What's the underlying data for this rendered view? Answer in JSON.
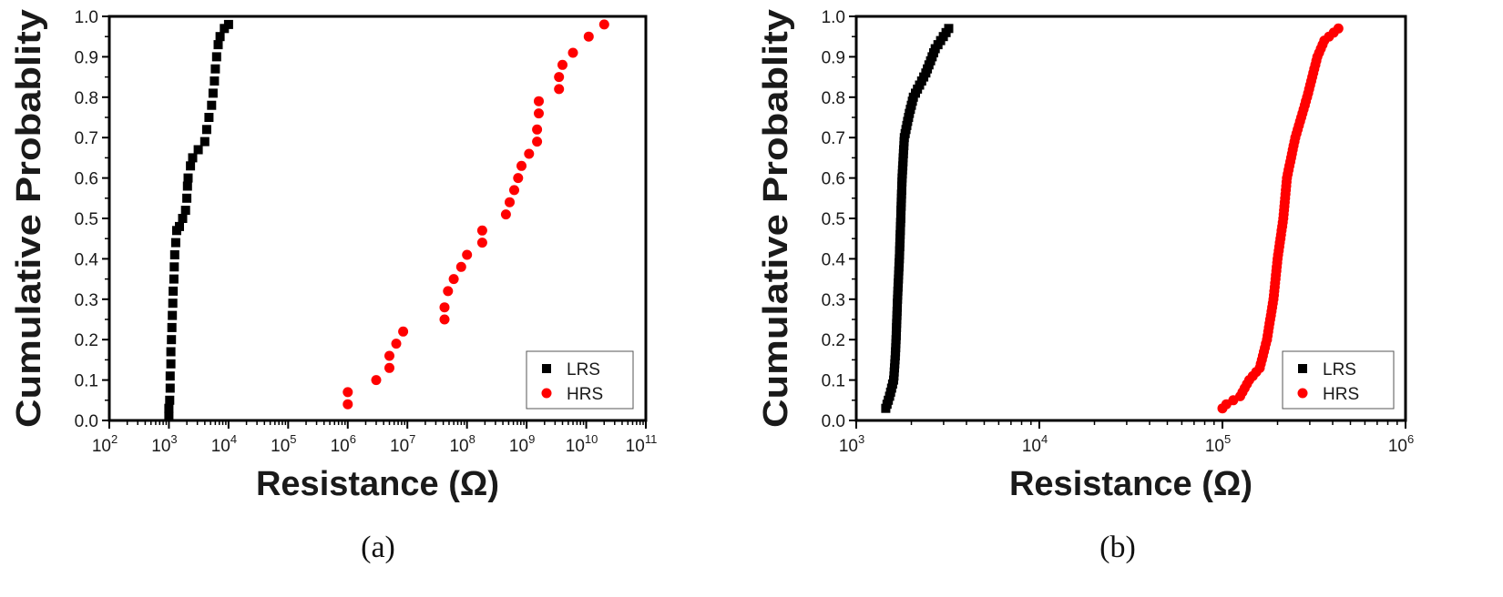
{
  "colors": {
    "lrs": "#000000",
    "hrs": "#ff0000",
    "axis": "#000000"
  },
  "chart_data": [
    {
      "type": "scatter",
      "caption": "(a)",
      "xlabel": "Resistance (Ω)",
      "ylabel": "Cumulative Probablity",
      "xscale": "log",
      "xlim": [
        100,
        100000000000
      ],
      "ylim": [
        0,
        1
      ],
      "xtick_exponents": [
        2,
        3,
        4,
        5,
        6,
        7,
        8,
        9,
        10,
        11
      ],
      "yticks": [
        "0.0",
        "0.1",
        "0.2",
        "0.3",
        "0.4",
        "0.5",
        "0.6",
        "0.7",
        "0.8",
        "0.9",
        "1.0"
      ],
      "legend_position": "bottom-right",
      "series": [
        {
          "name": "LRS",
          "marker": "square",
          "color": "#000000",
          "points": [
            [
              1000,
              0.01
            ],
            [
              1000,
              0.03
            ],
            [
              1030,
              0.05
            ],
            [
              1050,
              0.08
            ],
            [
              1050,
              0.11
            ],
            [
              1080,
              0.14
            ],
            [
              1080,
              0.17
            ],
            [
              1100,
              0.2
            ],
            [
              1120,
              0.23
            ],
            [
              1140,
              0.26
            ],
            [
              1160,
              0.29
            ],
            [
              1180,
              0.32
            ],
            [
              1210,
              0.35
            ],
            [
              1230,
              0.38
            ],
            [
              1250,
              0.41
            ],
            [
              1300,
              0.44
            ],
            [
              1350,
              0.47
            ],
            [
              1500,
              0.48
            ],
            [
              1700,
              0.5
            ],
            [
              1900,
              0.52
            ],
            [
              2000,
              0.55
            ],
            [
              2050,
              0.58
            ],
            [
              2100,
              0.6
            ],
            [
              2300,
              0.63
            ],
            [
              2500,
              0.65
            ],
            [
              3100,
              0.67
            ],
            [
              4000,
              0.69
            ],
            [
              4300,
              0.72
            ],
            [
              4700,
              0.75
            ],
            [
              5200,
              0.78
            ],
            [
              5500,
              0.81
            ],
            [
              5800,
              0.84
            ],
            [
              6000,
              0.87
            ],
            [
              6300,
              0.9
            ],
            [
              6700,
              0.93
            ],
            [
              7200,
              0.95
            ],
            [
              8500,
              0.97
            ],
            [
              10000,
              0.98
            ]
          ]
        },
        {
          "name": "HRS",
          "marker": "circle",
          "color": "#ff0000",
          "points": [
            [
              1000000,
              0.04
            ],
            [
              1000000,
              0.07
            ],
            [
              3000000,
              0.1
            ],
            [
              5000000,
              0.13
            ],
            [
              5000000,
              0.16
            ],
            [
              6500000,
              0.19
            ],
            [
              8500000,
              0.22
            ],
            [
              42000000,
              0.25
            ],
            [
              42000000,
              0.28
            ],
            [
              48000000,
              0.32
            ],
            [
              60000000,
              0.35
            ],
            [
              80000000,
              0.38
            ],
            [
              100000000,
              0.41
            ],
            [
              180000000,
              0.44
            ],
            [
              180000000,
              0.47
            ],
            [
              450000000,
              0.51
            ],
            [
              520000000,
              0.54
            ],
            [
              620000000,
              0.57
            ],
            [
              720000000,
              0.6
            ],
            [
              820000000,
              0.63
            ],
            [
              1100000000,
              0.66
            ],
            [
              1500000000,
              0.69
            ],
            [
              1500000000,
              0.72
            ],
            [
              1600000000,
              0.76
            ],
            [
              1600000000,
              0.79
            ],
            [
              3500000000,
              0.82
            ],
            [
              3500000000,
              0.85
            ],
            [
              4000000000,
              0.88
            ],
            [
              6000000000,
              0.91
            ],
            [
              11000000000,
              0.95
            ],
            [
              20000000000,
              0.98
            ]
          ]
        }
      ]
    },
    {
      "type": "scatter",
      "caption": "(b)",
      "xlabel": "Resistance (Ω)",
      "ylabel": "Cumulative Probablity",
      "xscale": "log",
      "xlim": [
        1000,
        1000000
      ],
      "ylim": [
        0,
        1
      ],
      "xtick_exponents": [
        3,
        4,
        5,
        6
      ],
      "yticks": [
        "0.0",
        "0.1",
        "0.2",
        "0.3",
        "0.4",
        "0.5",
        "0.6",
        "0.7",
        "0.8",
        "0.9",
        "1.0"
      ],
      "legend_position": "bottom-right",
      "series": [
        {
          "name": "LRS",
          "marker": "square",
          "color": "#000000",
          "quantile_curve": [
            [
              1450,
              0.03
            ],
            [
              1520,
              0.06
            ],
            [
              1600,
              0.1
            ],
            [
              1630,
              0.15
            ],
            [
              1650,
              0.2
            ],
            [
              1680,
              0.3
            ],
            [
              1720,
              0.4
            ],
            [
              1750,
              0.5
            ],
            [
              1780,
              0.6
            ],
            [
              1830,
              0.7
            ],
            [
              1950,
              0.76
            ],
            [
              2050,
              0.8
            ],
            [
              2400,
              0.86
            ],
            [
              2700,
              0.92
            ],
            [
              3200,
              0.97
            ]
          ],
          "n_points": 95
        },
        {
          "name": "HRS",
          "marker": "circle",
          "color": "#ff0000",
          "quantile_curve": [
            [
              100000,
              0.03
            ],
            [
              105000,
              0.04
            ],
            [
              125000,
              0.06
            ],
            [
              140000,
              0.1
            ],
            [
              160000,
              0.13
            ],
            [
              175000,
              0.2
            ],
            [
              190000,
              0.3
            ],
            [
              200000,
              0.4
            ],
            [
              215000,
              0.5
            ],
            [
              225000,
              0.6
            ],
            [
              250000,
              0.7
            ],
            [
              290000,
              0.8
            ],
            [
              330000,
              0.9
            ],
            [
              360000,
              0.94
            ],
            [
              430000,
              0.97
            ]
          ],
          "n_points": 95
        }
      ]
    }
  ]
}
